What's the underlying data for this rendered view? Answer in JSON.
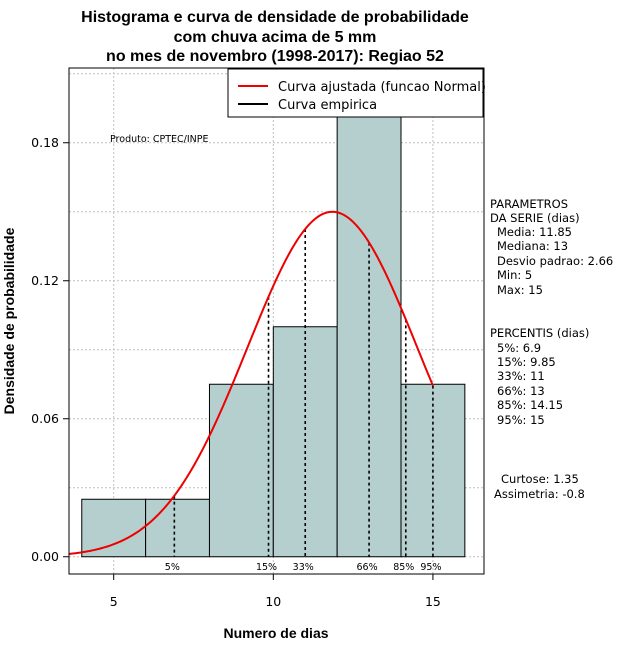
{
  "chart_data": {
    "type": "bar",
    "title_lines": [
      "Histograma e curva de densidade de probabilidade",
      "com chuva acima de 5 mm",
      "no mes de novembro (1998-2017): Regiao 52"
    ],
    "xlabel": "Numero de dias",
    "ylabel": "Densidade de probabilidade",
    "xlim": [
      3.6,
      16.6
    ],
    "ylim": [
      -0.0075,
      0.2125
    ],
    "x_ticks": [
      5,
      10,
      15
    ],
    "x_tick_labels": [
      "5",
      "10",
      "15"
    ],
    "y_ticks": [
      0.0,
      0.06,
      0.12,
      0.18
    ],
    "y_tick_labels": [
      "0.00",
      "0.06",
      "0.12",
      "0.18"
    ],
    "grid": true,
    "histogram": {
      "bins": [
        {
          "x0": 4,
          "x1": 6,
          "density": 0.025
        },
        {
          "x0": 6,
          "x1": 8,
          "density": 0.025
        },
        {
          "x0": 8,
          "x1": 10,
          "density": 0.075
        },
        {
          "x0": 10,
          "x1": 12,
          "density": 0.1
        },
        {
          "x0": 12,
          "x1": 14,
          "density": 0.2
        },
        {
          "x0": 14,
          "x1": 16,
          "density": 0.075
        }
      ],
      "fill": "#b5cfcf"
    },
    "normal_curve": {
      "name": "Curva ajustada (funcao Normal)",
      "mean": 11.85,
      "sd": 2.66,
      "x_range": [
        3.6,
        15
      ],
      "color": "#ee0000"
    },
    "empirical_curve": {
      "name": "Curva empirica",
      "color": "#000000"
    },
    "percentile_lines": [
      {
        "label": "5%",
        "x": 6.9
      },
      {
        "label": "15%",
        "x": 9.85
      },
      {
        "label": "33%",
        "x": 11
      },
      {
        "label": "66%",
        "x": 13
      },
      {
        "label": "85%",
        "x": 14.15
      },
      {
        "label": "95%",
        "x": 15
      }
    ],
    "legend_position": "top-right",
    "product_label": "Produto: CPTEC/INPE"
  },
  "side_panel": {
    "params_lines": [
      "PARAMETROS",
      "DA SERIE (dias)",
      "Media: 11.85",
      "Mediana: 13",
      "Desvio padrao: 2.66",
      "Min: 5",
      "Max: 15"
    ],
    "percentis_lines": [
      "PERCENTIS (dias)",
      "5%: 6.9",
      "15%: 9.85",
      "33%: 11",
      "66%: 13",
      "85%: 14.15",
      "95%: 15"
    ],
    "curtose": "Curtose: 1.35",
    "assimetria": "Assimetria: -0.8"
  }
}
